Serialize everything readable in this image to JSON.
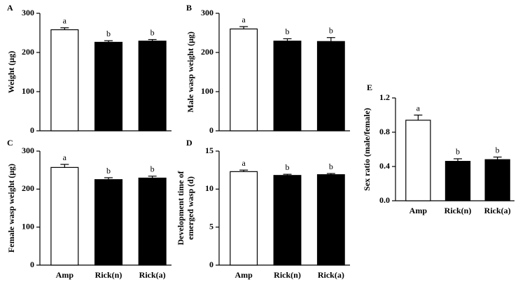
{
  "chart_data": [
    {
      "type": "bar",
      "title": "A",
      "ylabel": [
        "Weight (μg)"
      ],
      "categories": [
        null,
        null,
        null
      ],
      "values": [
        258,
        226,
        229
      ],
      "errors": [
        5,
        4,
        4
      ],
      "annotations": [
        "a",
        "b",
        "b"
      ],
      "colors": [
        "#ffffff",
        "#000000",
        "#000000"
      ],
      "ylim": [
        0,
        300
      ],
      "yticks": [
        0,
        100,
        200,
        300
      ]
    },
    {
      "type": "bar",
      "title": "B",
      "ylabel": [
        "Male wasp weight (μg)"
      ],
      "categories": [
        null,
        null,
        null
      ],
      "values": [
        260,
        229,
        228
      ],
      "errors": [
        6,
        6,
        10
      ],
      "annotations": [
        "a",
        "b",
        "b"
      ],
      "colors": [
        "#ffffff",
        "#000000",
        "#000000"
      ],
      "ylim": [
        0,
        300
      ],
      "yticks": [
        0,
        100,
        200,
        300
      ]
    },
    {
      "type": "bar",
      "title": "C",
      "ylabel": [
        "Female wasp weight (μg)"
      ],
      "categories": [
        "Amp",
        "Rick(n)",
        "Rick(a)"
      ],
      "values": [
        257,
        225,
        229
      ],
      "errors": [
        8,
        5,
        5
      ],
      "annotations": [
        "a",
        "b",
        "b"
      ],
      "colors": [
        "#ffffff",
        "#000000",
        "#000000"
      ],
      "ylim": [
        0,
        300
      ],
      "yticks": [
        0,
        100,
        200,
        300
      ]
    },
    {
      "type": "bar",
      "title": "D",
      "ylabel": [
        "Development time of",
        "emerged wasp (d)"
      ],
      "categories": [
        "Amp",
        "Rick(n)",
        "Rick(a)"
      ],
      "values": [
        12.3,
        11.8,
        11.9
      ],
      "errors": [
        0.2,
        0.15,
        0.15
      ],
      "annotations": [
        "a",
        "b",
        "b"
      ],
      "colors": [
        "#ffffff",
        "#000000",
        "#000000"
      ],
      "ylim": [
        0,
        15
      ],
      "yticks": [
        0,
        5,
        10,
        15
      ]
    },
    {
      "type": "bar",
      "title": "E",
      "ylabel": [
        "Sex ratio (male/female)"
      ],
      "categories": [
        "Amp",
        "Rick(n)",
        "Rick(a)"
      ],
      "values": [
        0.94,
        0.46,
        0.48
      ],
      "errors": [
        0.06,
        0.03,
        0.03
      ],
      "annotations": [
        "a",
        "b",
        "b"
      ],
      "colors": [
        "#ffffff",
        "#000000",
        "#000000"
      ],
      "ylim": [
        0,
        1.2
      ],
      "yticks": [
        {
          "value": 0,
          "label": "0.0"
        },
        0.4,
        0.8,
        1.2
      ]
    }
  ]
}
